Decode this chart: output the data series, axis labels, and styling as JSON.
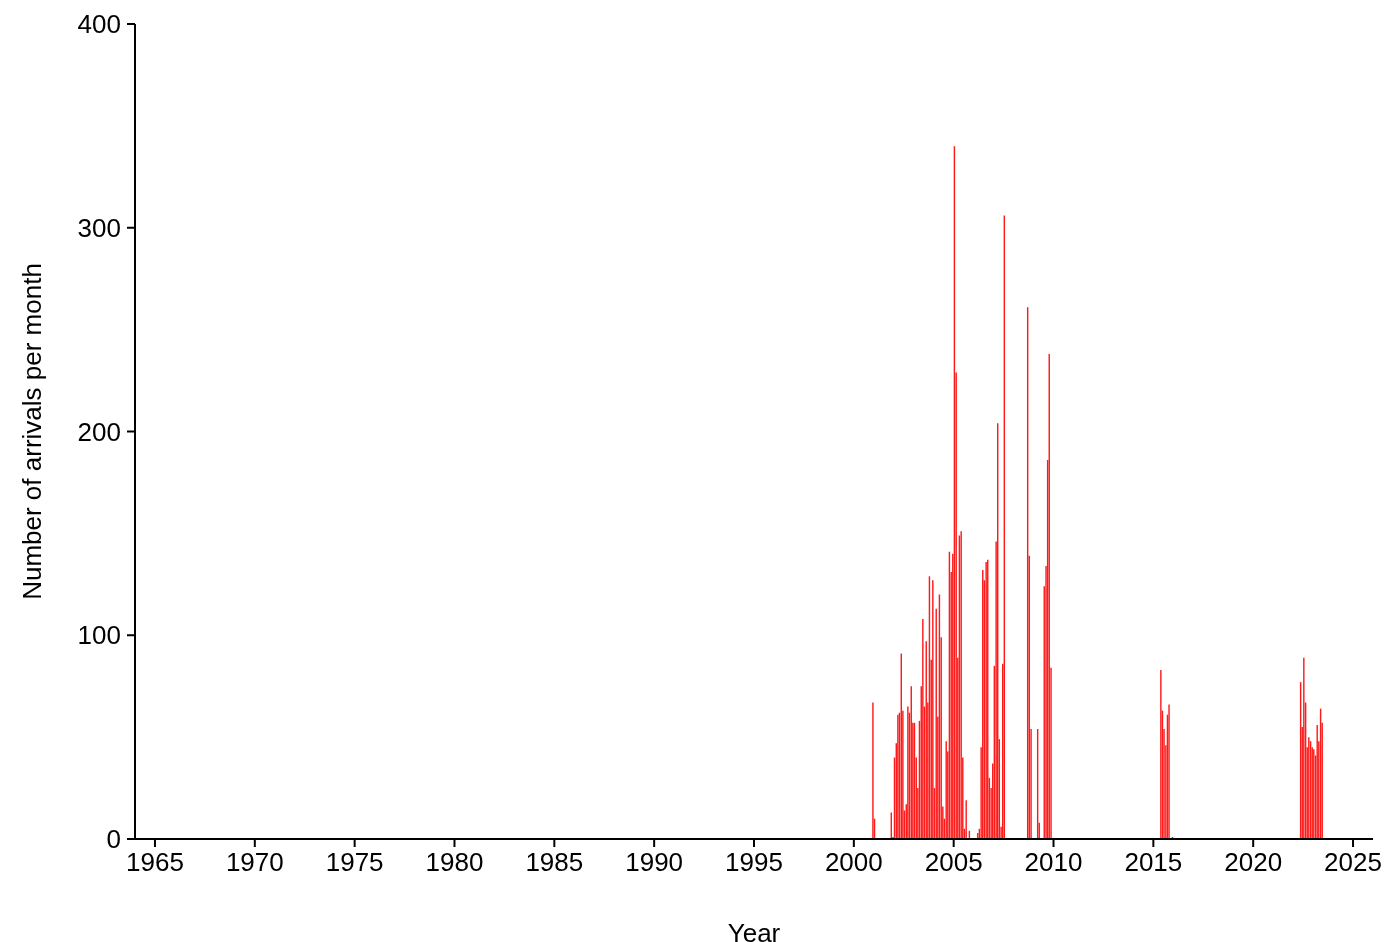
{
  "chart_data": {
    "type": "bar",
    "xlabel": "Year",
    "ylabel": "Number of arrivals per month",
    "color": "#ff1a1a",
    "x": [
      2000.96,
      2001.04,
      2001.88,
      2001.96,
      2002.04,
      2002.13,
      2002.21,
      2002.29,
      2002.38,
      2002.46,
      2002.54,
      2002.63,
      2002.71,
      2002.79,
      2002.88,
      2002.96,
      2003.04,
      2003.13,
      2003.21,
      2003.29,
      2003.38,
      2003.46,
      2003.54,
      2003.63,
      2003.71,
      2003.79,
      2003.88,
      2003.96,
      2004.04,
      2004.13,
      2004.21,
      2004.29,
      2004.38,
      2004.46,
      2004.54,
      2004.63,
      2004.71,
      2004.79,
      2004.88,
      2004.96,
      2005.04,
      2005.13,
      2005.21,
      2005.29,
      2005.38,
      2005.46,
      2005.54,
      2005.63,
      2005.79,
      2006.21,
      2006.29,
      2006.38,
      2006.46,
      2006.54,
      2006.63,
      2006.71,
      2006.79,
      2006.88,
      2006.96,
      2007.04,
      2007.13,
      2007.21,
      2007.29,
      2007.38,
      2007.46,
      2007.54,
      2008.71,
      2008.79,
      2008.88,
      2009.21,
      2009.29,
      2009.54,
      2009.63,
      2009.71,
      2009.79,
      2009.88,
      2015.38,
      2015.46,
      2015.54,
      2015.63,
      2015.71,
      2015.79,
      2015.96,
      2022.38,
      2022.46,
      2022.54,
      2022.63,
      2022.71,
      2022.79,
      2022.88,
      2022.96,
      2023.04,
      2023.13,
      2023.21,
      2023.29,
      2023.38,
      2023.46
    ],
    "values": [
      67,
      10,
      13,
      1,
      40,
      47,
      61,
      62,
      91,
      63,
      14,
      17,
      65,
      62,
      75,
      57,
      57,
      40,
      25,
      58,
      75,
      108,
      65,
      97,
      67,
      129,
      88,
      127,
      25,
      113,
      60,
      120,
      99,
      16,
      10,
      48,
      43,
      141,
      131,
      140,
      340,
      229,
      89,
      149,
      151,
      40,
      5,
      19,
      4,
      3,
      5,
      45,
      132,
      127,
      136,
      137,
      30,
      25,
      37,
      85,
      146,
      204,
      49,
      6,
      86,
      306,
      261,
      139,
      54,
      54,
      8,
      124,
      134,
      186,
      238,
      84,
      83,
      63,
      54,
      46,
      61,
      66,
      1,
      77,
      55,
      89,
      67,
      45,
      50,
      48,
      45,
      44,
      41,
      56,
      48,
      64,
      57
    ],
    "xlim": [
      1964,
      2026
    ],
    "xticks": [
      1965,
      1970,
      1975,
      1980,
      1985,
      1990,
      1995,
      2000,
      2005,
      2010,
      2015,
      2020,
      2025
    ],
    "ylim": [
      0,
      400
    ],
    "yticks": [
      0,
      100,
      200,
      300,
      400
    ],
    "grid": false
  }
}
